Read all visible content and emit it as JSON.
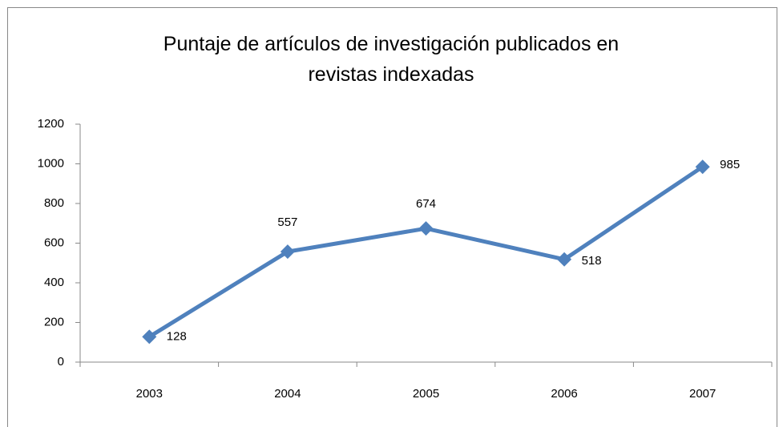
{
  "chart_data": {
    "type": "line",
    "title": "Puntaje de artículos de investigación publicados en revistas indexadas",
    "categories": [
      "2003",
      "2004",
      "2005",
      "2006",
      "2007"
    ],
    "values": [
      128,
      557,
      674,
      518,
      985
    ],
    "color": "#4f81bd",
    "ylim": [
      0,
      1200
    ],
    "yticks": [
      0,
      200,
      400,
      600,
      800,
      1000,
      1200
    ],
    "grid": false
  }
}
